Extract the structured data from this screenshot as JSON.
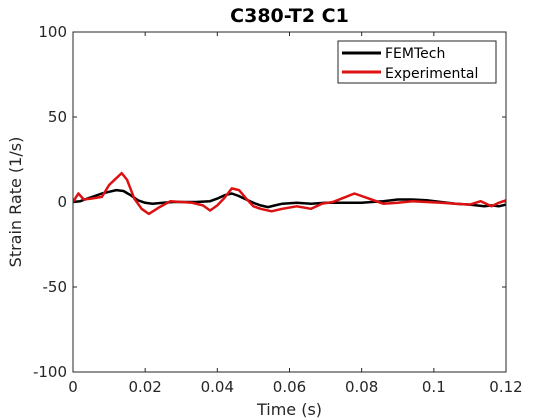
{
  "chart_data": {
    "type": "line",
    "title": "C380-T2 C1",
    "xlabel": "Time (s)",
    "ylabel": "Strain Rate (1/s)",
    "xlim": [
      0,
      0.12
    ],
    "ylim": [
      -100,
      100
    ],
    "xticks": [
      0,
      0.02,
      0.04,
      0.06,
      0.08,
      0.1,
      0.12
    ],
    "xtick_labels": [
      "0",
      "0.02",
      "0.04",
      "0.06",
      "0.08",
      "0.1",
      "0.12"
    ],
    "yticks": [
      100,
      50,
      0,
      -50,
      -100
    ],
    "ytick_labels": [
      "100",
      "50",
      "0",
      "-50",
      "-100"
    ],
    "grid": false,
    "legend_position": "top-right",
    "series": [
      {
        "name": "FEMTech",
        "color": "#000000",
        "x": [
          0,
          0.002,
          0.004,
          0.006,
          0.008,
          0.01,
          0.012,
          0.014,
          0.016,
          0.018,
          0.02,
          0.022,
          0.025,
          0.028,
          0.03,
          0.034,
          0.038,
          0.04,
          0.042,
          0.044,
          0.046,
          0.048,
          0.05,
          0.052,
          0.054,
          0.056,
          0.058,
          0.062,
          0.066,
          0.07,
          0.076,
          0.08,
          0.086,
          0.09,
          0.094,
          0.098,
          0.102,
          0.106,
          0.11,
          0.114,
          0.116,
          0.118,
          0.12
        ],
        "y": [
          0,
          0.5,
          2,
          3.5,
          5,
          6,
          7,
          6.5,
          4,
          1,
          -0.5,
          -1,
          -0.5,
          0,
          0,
          0,
          0.5,
          2,
          4,
          5,
          3.5,
          1.5,
          -0.5,
          -2,
          -3,
          -2,
          -1,
          -0.5,
          -1,
          -0.5,
          -0.5,
          -0.5,
          0.5,
          1.5,
          1.5,
          1,
          0,
          -1,
          -1.5,
          -2.5,
          -2,
          -2.5,
          -1.5
        ]
      },
      {
        "name": "Experimental",
        "color": "#dd1111",
        "x": [
          0,
          0.0015,
          0.003,
          0.005,
          0.008,
          0.01,
          0.012,
          0.0135,
          0.015,
          0.017,
          0.019,
          0.021,
          0.024,
          0.027,
          0.03,
          0.033,
          0.036,
          0.038,
          0.04,
          0.042,
          0.044,
          0.046,
          0.048,
          0.05,
          0.052,
          0.055,
          0.058,
          0.062,
          0.066,
          0.069,
          0.072,
          0.075,
          0.078,
          0.082,
          0.086,
          0.09,
          0.094,
          0.098,
          0.102,
          0.106,
          0.11,
          0.113,
          0.116,
          0.118,
          0.12
        ],
        "y": [
          0,
          5,
          1.5,
          2,
          3,
          10,
          14,
          17,
          13,
          2,
          -4,
          -7,
          -3,
          0.5,
          0,
          -0.5,
          -2,
          -5,
          -2,
          2.5,
          8,
          7,
          2,
          -2.5,
          -4,
          -5.5,
          -4,
          -2.5,
          -4,
          -1,
          0,
          2.5,
          5,
          2,
          -1,
          -0.5,
          0.5,
          0,
          -0.5,
          -1,
          -1.5,
          0.5,
          -2.5,
          -0.5,
          1
        ]
      }
    ]
  }
}
